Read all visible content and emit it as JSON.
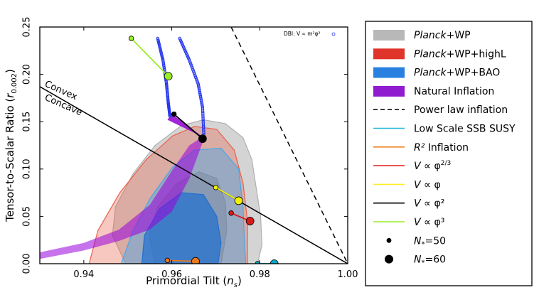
{
  "chart_data": {
    "type": "scatter",
    "xlabel": "Primordial Tilt (n_s)",
    "ylabel": "Tensor-to-Scalar Ratio (r_0.002)",
    "xlim": [
      0.93,
      1.0
    ],
    "ylim": [
      0.0,
      0.25
    ],
    "x_ticks": [
      {
        "value": 0.94,
        "label": "0.94"
      },
      {
        "value": 0.96,
        "label": "0.96"
      },
      {
        "value": 0.98,
        "label": "0.98"
      },
      {
        "value": 1.0,
        "label": "1.00"
      }
    ],
    "y_ticks": [
      {
        "value": 0.0,
        "label": "0.00"
      },
      {
        "value": 0.05,
        "label": "0.05"
      },
      {
        "value": 0.1,
        "label": "0.10"
      },
      {
        "value": 0.15,
        "label": "0.15"
      },
      {
        "value": 0.2,
        "label": "0.20"
      },
      {
        "value": 0.25,
        "label": "0.25"
      }
    ],
    "annotations": [
      {
        "text": "Convex",
        "x": 0.9335,
        "y": 0.178,
        "angle": 0
      },
      {
        "text": "Concave",
        "x": 0.9335,
        "y": 0.165,
        "angle": 0
      },
      {
        "text": "DBI: V ∝ m²φ²",
        "x": 0.9858,
        "y": 0.237
      }
    ],
    "contours": [
      {
        "name": "Planck+WP 95%",
        "color": "#b0b0b0",
        "opacity": 0.55,
        "points": [
          [
            0.9495,
            0.0
          ],
          [
            0.9465,
            0.03
          ],
          [
            0.9472,
            0.06
          ],
          [
            0.9512,
            0.095
          ],
          [
            0.9562,
            0.125
          ],
          [
            0.9622,
            0.146
          ],
          [
            0.9672,
            0.152
          ],
          [
            0.9722,
            0.148
          ],
          [
            0.9762,
            0.133
          ],
          [
            0.9782,
            0.11
          ],
          [
            0.9792,
            0.08
          ],
          [
            0.9802,
            0.05
          ],
          [
            0.9805,
            0.02
          ],
          [
            0.9795,
            0.0
          ]
        ]
      },
      {
        "name": "Planck+WP 68%",
        "color": "#8a8a8a",
        "opacity": 0.6,
        "points": [
          [
            0.9562,
            0.0
          ],
          [
            0.9548,
            0.03
          ],
          [
            0.9568,
            0.06
          ],
          [
            0.9612,
            0.085
          ],
          [
            0.9662,
            0.097
          ],
          [
            0.9702,
            0.09
          ],
          [
            0.9722,
            0.065
          ],
          [
            0.9725,
            0.035
          ],
          [
            0.9712,
            0.0
          ]
        ]
      },
      {
        "name": "Planck+WP+highL 95%",
        "color": "#e8604a",
        "opacity": 0.35,
        "points": [
          [
            0.9412,
            0.0
          ],
          [
            0.9432,
            0.035
          ],
          [
            0.9482,
            0.075
          ],
          [
            0.9542,
            0.11
          ],
          [
            0.9602,
            0.135
          ],
          [
            0.9652,
            0.145
          ],
          [
            0.9702,
            0.142
          ],
          [
            0.9742,
            0.12
          ],
          [
            0.9762,
            0.085
          ],
          [
            0.9772,
            0.045
          ],
          [
            0.9772,
            0.0
          ]
        ]
      },
      {
        "name": "Planck+WP+BAO 95%",
        "color": "#4aa6e6",
        "opacity": 0.45,
        "points": [
          [
            0.9485,
            0.0
          ],
          [
            0.9512,
            0.035
          ],
          [
            0.9552,
            0.07
          ],
          [
            0.9602,
            0.102
          ],
          [
            0.9652,
            0.12
          ],
          [
            0.9712,
            0.122
          ],
          [
            0.9752,
            0.1
          ],
          [
            0.9762,
            0.06
          ],
          [
            0.9765,
            0.025
          ],
          [
            0.9768,
            0.0
          ]
        ]
      },
      {
        "name": "Planck+WP+BAO 68%",
        "color": "#1f6fd0",
        "opacity": 0.7,
        "points": [
          [
            0.9532,
            0.0
          ],
          [
            0.9538,
            0.03
          ],
          [
            0.9572,
            0.058
          ],
          [
            0.9622,
            0.075
          ],
          [
            0.9672,
            0.073
          ],
          [
            0.9702,
            0.05
          ],
          [
            0.9712,
            0.022
          ],
          [
            0.9705,
            0.0
          ]
        ]
      }
    ],
    "natural_inflation_band": {
      "name": "Natural Inflation",
      "color": "#9900dd",
      "opacity": 0.55,
      "upper": [
        [
          0.93,
          0.012
        ],
        [
          0.94,
          0.022
        ],
        [
          0.948,
          0.036
        ],
        [
          0.955,
          0.062
        ],
        [
          0.96,
          0.098
        ],
        [
          0.964,
          0.125
        ],
        [
          0.967,
          0.134
        ]
      ],
      "lower": [
        [
          0.967,
          0.128
        ],
        [
          0.964,
          0.09
        ],
        [
          0.96,
          0.055
        ],
        [
          0.955,
          0.036
        ],
        [
          0.948,
          0.024
        ],
        [
          0.94,
          0.014
        ],
        [
          0.93,
          0.005
        ]
      ],
      "top_cap": [
        [
          0.96,
          0.158
        ],
        [
          0.967,
          0.134
        ],
        [
          0.959,
          0.152
        ]
      ]
    },
    "reference_lines": [
      {
        "name": "Power law inflation",
        "style": "dashed",
        "color": "#000000",
        "points": [
          [
            0.9735,
            0.25
          ],
          [
            1.0,
            0.0
          ]
        ]
      },
      {
        "name": "Convex/Concave boundary",
        "style": "solid",
        "color": "#000000",
        "points": [
          [
            0.93,
            0.187
          ],
          [
            1.0,
            0.0
          ]
        ]
      }
    ],
    "models": [
      {
        "name": "Low Scale SSB SUSY",
        "color": "#00aacc",
        "n50": [
          0.9795,
          0.0
        ],
        "n60": [
          0.9833,
          0.0
        ]
      },
      {
        "name": "R^2 Inflation",
        "color": "#e97a1f",
        "n50": [
          0.959,
          0.0035
        ],
        "n60": [
          0.9654,
          0.0025
        ]
      },
      {
        "name": "V ∝ φ^(2/3)",
        "color": "#dd1a1a",
        "n50": [
          0.9735,
          0.0535
        ],
        "n60": [
          0.9778,
          0.045
        ]
      },
      {
        "name": "V ∝ φ",
        "color": "#f0f000",
        "n50": [
          0.97,
          0.0805
        ],
        "n60": [
          0.9752,
          0.0665
        ]
      },
      {
        "name": "V ∝ φ^2",
        "color": "#000000",
        "n50": [
          0.9605,
          0.158
        ],
        "n60": [
          0.967,
          0.132
        ]
      },
      {
        "name": "V ∝ φ^3",
        "color": "#99ee22",
        "n50": [
          0.9508,
          0.238
        ],
        "n60": [
          0.9592,
          0.198
        ]
      }
    ],
    "dbi_curves": {
      "color": "#2233ee",
      "curve1": [
        [
          0.9568,
          0.238
        ],
        [
          0.958,
          0.215
        ],
        [
          0.9588,
          0.19
        ],
        [
          0.9592,
          0.17
        ],
        [
          0.9596,
          0.155
        ]
      ],
      "curve2": [
        [
          0.9618,
          0.238
        ],
        [
          0.964,
          0.215
        ],
        [
          0.966,
          0.19
        ],
        [
          0.967,
          0.165
        ],
        [
          0.9673,
          0.135
        ]
      ]
    },
    "legend": {
      "placement": "right",
      "items": [
        {
          "kind": "patch",
          "color": "#b8b8b8",
          "label_italic": "Planck",
          "label_rest": "+WP"
        },
        {
          "kind": "patch",
          "color": "#e0352a",
          "label_italic": "Planck",
          "label_rest": "+WP+highL"
        },
        {
          "kind": "patch",
          "color": "#2a80e0",
          "label_italic": "Planck",
          "label_rest": "+WP+BAO"
        },
        {
          "kind": "patch",
          "color": "#8f1ccf",
          "label_italic": "",
          "label_rest": "Natural Inflation"
        },
        {
          "kind": "dashed",
          "color": "#000000",
          "label_italic": "",
          "label_rest": "Power law inflation"
        },
        {
          "kind": "line",
          "color": "#22b8d8",
          "label_italic": "",
          "label_rest": "Low Scale SSB SUSY"
        },
        {
          "kind": "line",
          "color": "#f08020",
          "label_italic": "R²",
          "label_rest": " Inflation"
        },
        {
          "kind": "line",
          "color": "#e02a2a",
          "label_italic": "V",
          "label_rest": " ∝ φ^(2/3)"
        },
        {
          "kind": "line",
          "color": "#ffee22",
          "label_italic": "V",
          "label_rest": " ∝ φ"
        },
        {
          "kind": "line",
          "color": "#000000",
          "label_italic": "V",
          "label_rest": " ∝ φ²"
        },
        {
          "kind": "line",
          "color": "#99ee22",
          "label_italic": "V",
          "label_rest": " ∝ φ³"
        },
        {
          "kind": "dot-small",
          "color": "#000000",
          "label_italic": "N",
          "label_rest": "*=50"
        },
        {
          "kind": "dot-large",
          "color": "#000000",
          "label_italic": "N",
          "label_rest": "*=60"
        }
      ]
    }
  }
}
